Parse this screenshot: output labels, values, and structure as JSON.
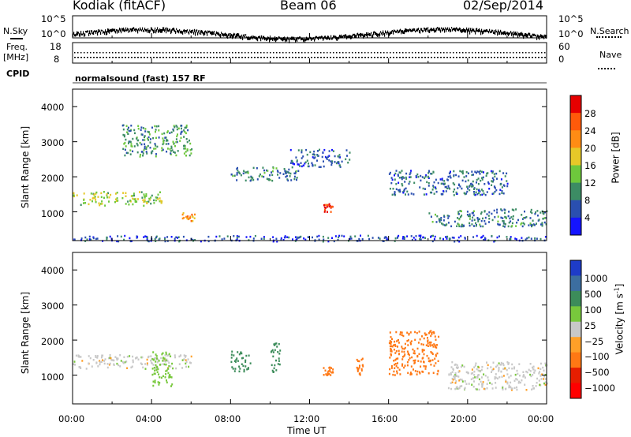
{
  "header": {
    "station": "Kodiak (fitACF)",
    "beam": "Beam 06",
    "date": "02/Sep/2014"
  },
  "sky_panel": {
    "left_label": "N.Sky",
    "right_label": "N.Search",
    "tick_top_left": "10^5",
    "tick_bottom_left": "10^0",
    "tick_top_right": "10^5",
    "tick_bottom_right": "10^0"
  },
  "freq_panel": {
    "left_label_1": "Freq.",
    "left_label_2": "[MHz]",
    "right_label": "Nave",
    "tick_top_left": "18",
    "tick_bottom_left": "8",
    "tick_top_right": "60",
    "tick_bottom_right": "0"
  },
  "cpid": {
    "label": "CPID",
    "mode": "normalsound (fast) 157 RF"
  },
  "axes": {
    "xlabel": "Time UT",
    "ylabel": "Slant Range [km]",
    "x_ticks": [
      "00:00",
      "04:00",
      "08:00",
      "12:00",
      "16:00",
      "20:00",
      "00:00"
    ],
    "y_ticks": [
      "1000",
      "2000",
      "3000",
      "4000"
    ]
  },
  "colorbars": {
    "power": {
      "label": "Power [dB]",
      "ticks": [
        "4",
        "8",
        "12",
        "16",
        "20",
        "24",
        "28"
      ],
      "colors": [
        "#1414ff",
        "#2a4fb0",
        "#3c8c64",
        "#6ec83c",
        "#e6c828",
        "#ff8c14",
        "#ff5a0a",
        "#e60000"
      ]
    },
    "velocity": {
      "label": "Velocity [m s",
      "label_sup": "-1",
      "label_end": "]",
      "ticks": [
        "1000",
        "500",
        "100",
        "25",
        "−25",
        "−100",
        "−500",
        "−1000"
      ],
      "colors": [
        "#1e3cc8",
        "#3c6ea0",
        "#3c8c5a",
        "#78c83c",
        "#c8c8c8",
        "#ffa028",
        "#ff7814",
        "#e61e00",
        "#ff0000"
      ]
    }
  },
  "chart_data": {
    "type": "heatmap",
    "title": "Kodiak (fitACF) Beam 06 02/Sep/2014",
    "xlabel": "Time UT",
    "ylabel": "Slant Range [km]",
    "xlim": [
      "00:00",
      "24:00"
    ],
    "ylim": [
      180,
      4500
    ],
    "panels": [
      {
        "name": "Power",
        "units": "dB",
        "color_range": [
          0,
          30
        ],
        "features": [
          {
            "start": "00:00",
            "end": "04:30",
            "range_km": [
              1200,
              1600
            ],
            "value_db": 14
          },
          {
            "start": "02:30",
            "end": "06:00",
            "range_km": [
              2600,
              3500
            ],
            "value_db": 10
          },
          {
            "start": "05:30",
            "end": "06:10",
            "range_km": [
              750,
              1000
            ],
            "value_db": 20
          },
          {
            "start": "08:00",
            "end": "11:30",
            "range_km": [
              1900,
              2300
            ],
            "value_db": 8
          },
          {
            "start": "11:00",
            "end": "14:00",
            "range_km": [
              2300,
              2800
            ],
            "value_db": 6
          },
          {
            "start": "12:40",
            "end": "13:10",
            "range_km": [
              1000,
              1250
            ],
            "value_db": 28
          },
          {
            "start": "16:00",
            "end": "22:00",
            "range_km": [
              1500,
              2200
            ],
            "value_db": 7
          },
          {
            "start": "18:00",
            "end": "24:00",
            "range_km": [
              600,
              1100
            ],
            "value_db": 8
          },
          {
            "start": "00:00",
            "end": "24:00",
            "range_km": [
              180,
              350
            ],
            "value_db": 5
          }
        ]
      },
      {
        "name": "Velocity",
        "units": "m s-1",
        "color_range": [
          -1000,
          1000
        ],
        "features": [
          {
            "start": "00:00",
            "end": "06:00",
            "range_km": [
              1200,
              1600
            ],
            "value_ms": 0
          },
          {
            "start": "04:00",
            "end": "05:00",
            "range_km": [
              700,
              1700
            ],
            "value_ms": 60
          },
          {
            "start": "08:00",
            "end": "09:00",
            "range_km": [
              1100,
              1700
            ],
            "value_ms": 150
          },
          {
            "start": "10:00",
            "end": "10:30",
            "range_km": [
              1100,
              2000
            ],
            "value_ms": 200
          },
          {
            "start": "12:40",
            "end": "13:10",
            "range_km": [
              1000,
              1250
            ],
            "value_ms": -150
          },
          {
            "start": "14:20",
            "end": "14:40",
            "range_km": [
              1000,
              1500
            ],
            "value_ms": -200
          },
          {
            "start": "16:00",
            "end": "18:30",
            "range_km": [
              1000,
              2300
            ],
            "value_ms": -300
          },
          {
            "start": "19:00",
            "end": "24:00",
            "range_km": [
              600,
              1400
            ],
            "value_ms": 0
          }
        ]
      }
    ]
  }
}
